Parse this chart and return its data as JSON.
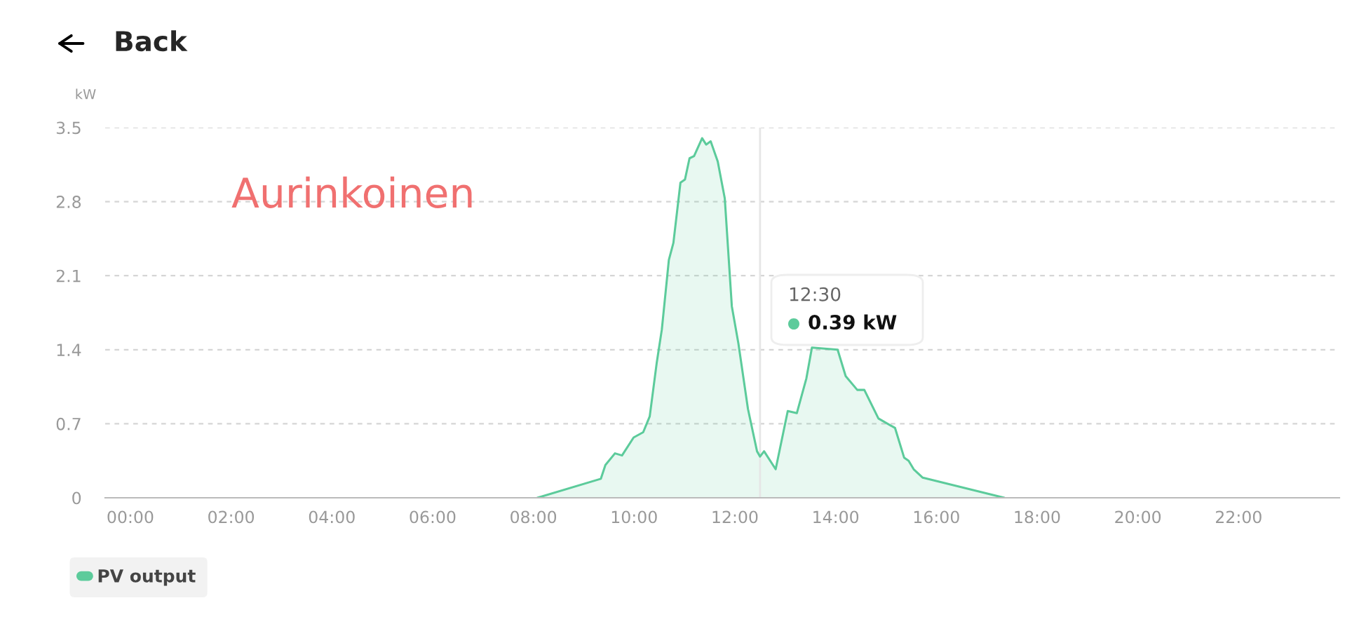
{
  "chart_data": {
    "type": "area",
    "title": "Back",
    "ylabel": "kW",
    "x": [
      8.08,
      9.34,
      9.43,
      9.62,
      9.76,
      9.99,
      10.18,
      10.31,
      10.45,
      10.55,
      10.69,
      10.78,
      10.92,
      11.01,
      11.1,
      11.19,
      11.35,
      11.43,
      11.52,
      11.66,
      11.8,
      11.94,
      12.07,
      12.26,
      12.44,
      12.5,
      12.58,
      12.81,
      13.05,
      13.23,
      13.42,
      13.53,
      14.04,
      14.2,
      14.43,
      14.57,
      14.85,
      15.18,
      15.36,
      15.45,
      15.55,
      15.73,
      17.35
    ],
    "series": [
      {
        "name": "PV output",
        "color": "#5ccb9b",
        "values": [
          0,
          0.18,
          0.31,
          0.42,
          0.4,
          0.57,
          0.62,
          0.77,
          1.28,
          1.59,
          2.25,
          2.41,
          2.98,
          3.01,
          3.21,
          3.23,
          3.4,
          3.34,
          3.37,
          3.18,
          2.83,
          1.81,
          1.46,
          0.84,
          0.44,
          0.39,
          0.44,
          0.27,
          0.82,
          0.8,
          1.13,
          1.42,
          1.4,
          1.15,
          1.02,
          1.02,
          0.75,
          0.66,
          0.38,
          0.35,
          0.27,
          0.19,
          0
        ]
      }
    ],
    "xlim": [
      -0.5,
      24
    ],
    "ylim": [
      0,
      3.5
    ],
    "xticks": [
      {
        "value": 0,
        "label": "00:00"
      },
      {
        "value": 2,
        "label": "02:00"
      },
      {
        "value": 4,
        "label": "04:00"
      },
      {
        "value": 6,
        "label": "06:00"
      },
      {
        "value": 8,
        "label": "08:00"
      },
      {
        "value": 10,
        "label": "10:00"
      },
      {
        "value": 12,
        "label": "12:00"
      },
      {
        "value": 14,
        "label": "14:00"
      },
      {
        "value": 16,
        "label": "16:00"
      },
      {
        "value": 18,
        "label": "18:00"
      },
      {
        "value": 20,
        "label": "20:00"
      },
      {
        "value": 22,
        "label": "22:00"
      }
    ],
    "yticks": [
      0,
      0.7,
      1.4,
      2.1,
      2.8,
      3.5
    ],
    "grid": "y",
    "legend": "bottom left",
    "ref_lines": [
      {
        "axis": "x",
        "value": 12.5,
        "color": "#e6e6e6"
      }
    ],
    "annotations": [
      "Aurinkoinen",
      "12:30",
      "0.39 kW"
    ]
  }
}
